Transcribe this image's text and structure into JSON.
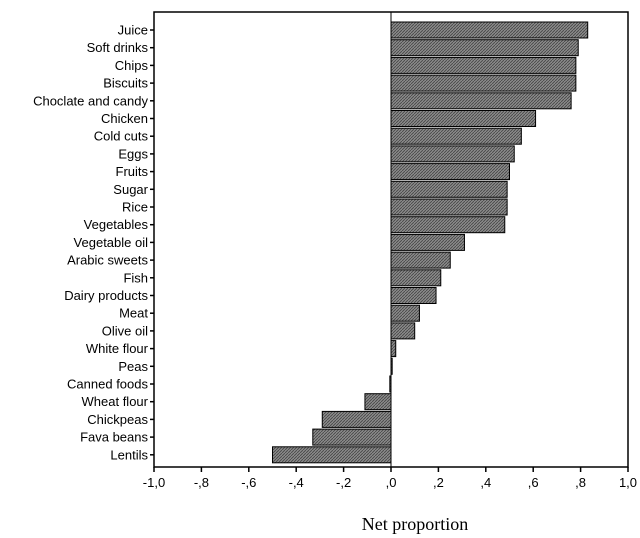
{
  "chart_data": {
    "type": "bar",
    "orientation": "horizontal",
    "title": "",
    "xlabel": "Net proportion",
    "ylabel": "",
    "xlim": [
      -1.0,
      1.0
    ],
    "grid": false,
    "legend": "none",
    "bar_color": "#8a8a8a",
    "categories": [
      "Juice",
      "Soft drinks",
      "Chips",
      "Biscuits",
      "Choclate and candy",
      "Chicken",
      "Cold cuts",
      "Eggs",
      "Fruits",
      "Sugar",
      "Rice",
      "Vegetables",
      "Vegetable oil",
      "Arabic sweets",
      "Fish",
      "Dairy products",
      "Meat",
      "Olive oil",
      "White flour",
      "Peas",
      "Canned foods",
      "Wheat flour",
      "Chickpeas",
      "Fava beans",
      "Lentils"
    ],
    "values": [
      0.83,
      0.79,
      0.78,
      0.78,
      0.76,
      0.61,
      0.55,
      0.52,
      0.5,
      0.49,
      0.49,
      0.48,
      0.31,
      0.25,
      0.21,
      0.19,
      0.12,
      0.1,
      0.02,
      0.005,
      -0.005,
      -0.11,
      -0.29,
      -0.33,
      -0.5
    ],
    "x_ticks": [
      -1.0,
      -0.8,
      -0.6,
      -0.4,
      -0.2,
      0.0,
      0.2,
      0.4,
      0.6,
      0.8,
      1.0
    ],
    "x_tick_labels": [
      "-1,0",
      "-,8",
      "-,6",
      "-,4",
      "-,2",
      ",0",
      ",2",
      ",4",
      ",6",
      ",8",
      "1,0"
    ]
  }
}
